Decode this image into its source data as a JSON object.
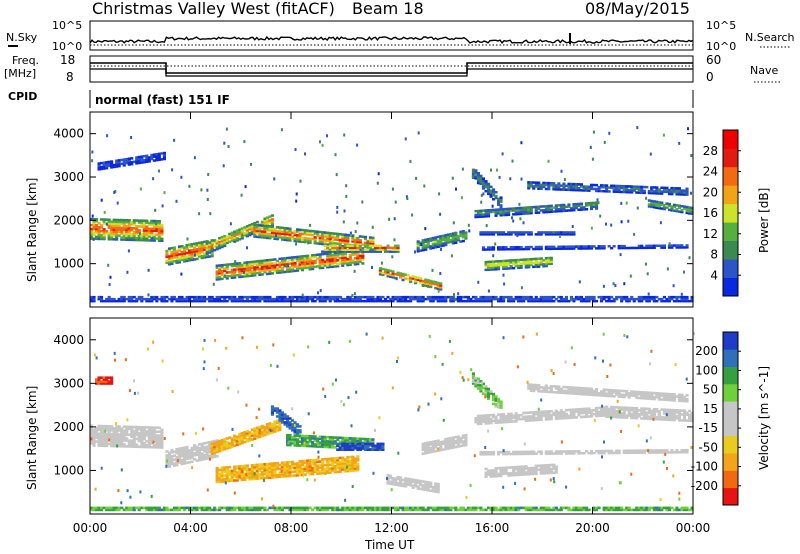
{
  "header": {
    "title": "Christmas Valley West (fitACF)",
    "beam": "Beam 18",
    "date": "08/May/2015"
  },
  "noise_panel": {
    "left_label": "N.Sky",
    "right_label": "N.Search",
    "ticks_left": [
      "10^5",
      "10^0"
    ],
    "ticks_right": [
      "10^5",
      "10^0"
    ]
  },
  "freq_panel": {
    "left_label_line1": "Freq.",
    "left_label_line2": "[MHz]",
    "right_label": "Nave",
    "ticks_left": [
      "18",
      "8"
    ],
    "ticks_right": [
      "60",
      "0"
    ]
  },
  "cpid": {
    "label": "CPID",
    "value": "normal (fast) 151 IF"
  },
  "colors": {
    "power": [
      "#0a28e0",
      "#2e55c8",
      "#3c8a50",
      "#56b040",
      "#cde22a",
      "#f2a418",
      "#f26a12",
      "#e01c10",
      "#ee0000"
    ],
    "velocity": [
      "#e61414",
      "#f06a12",
      "#f4a418",
      "#e9cc1e",
      "#c6c6c6",
      "#c6c6c6",
      "#6fd03c",
      "#36a040",
      "#2f70b8",
      "#1e3cc6"
    ]
  },
  "chart_data": [
    {
      "type": "heatmap",
      "name": "power-panel",
      "ylabel": "Slant Range [km]",
      "yticks": [
        "1000",
        "2000",
        "3000",
        "4000"
      ],
      "ylim": [
        0,
        4500
      ],
      "colorbar_label": "Power [dB]",
      "colorbar_ticks": [
        "4",
        "8",
        "12",
        "16",
        "20",
        "24",
        "28"
      ],
      "colorbar_range": [
        0,
        32
      ],
      "bands": [
        {
          "t0": 0.0,
          "t1": 2.9,
          "r0": 1800,
          "r1": 1750,
          "w": 480,
          "p": 26
        },
        {
          "t0": 3.0,
          "t1": 4.8,
          "r0": 1150,
          "r1": 1350,
          "w": 380,
          "p": 27
        },
        {
          "t0": 4.6,
          "t1": 7.2,
          "r0": 1350,
          "r1": 2000,
          "w": 260,
          "p": 22
        },
        {
          "t0": 6.5,
          "t1": 11.2,
          "r0": 1750,
          "r1": 1450,
          "w": 280,
          "p": 26
        },
        {
          "t0": 5.0,
          "t1": 10.8,
          "r0": 780,
          "r1": 1150,
          "w": 320,
          "p": 28
        },
        {
          "t0": 9.2,
          "t1": 12.2,
          "r0": 1350,
          "r1": 1350,
          "w": 180,
          "p": 24
        },
        {
          "t0": 11.5,
          "t1": 13.9,
          "r0": 820,
          "r1": 470,
          "w": 160,
          "p": 27
        },
        {
          "t0": 13.0,
          "t1": 14.9,
          "r0": 1400,
          "r1": 1650,
          "w": 260,
          "p": 14
        },
        {
          "t0": 15.7,
          "t1": 18.4,
          "r0": 950,
          "r1": 1050,
          "w": 220,
          "p": 19
        },
        {
          "t0": 15.3,
          "t1": 20.2,
          "r0": 2150,
          "r1": 2350,
          "w": 180,
          "p": 10
        },
        {
          "t0": 15.5,
          "t1": 19.3,
          "r0": 1700,
          "r1": 1700,
          "w": 80,
          "p": 6
        },
        {
          "t0": 15.6,
          "t1": 23.8,
          "r0": 1350,
          "r1": 1400,
          "w": 80,
          "p": 5
        },
        {
          "t0": 17.4,
          "t1": 23.8,
          "r0": 2800,
          "r1": 2650,
          "w": 150,
          "p": 9
        },
        {
          "t0": 22.2,
          "t1": 24.0,
          "r0": 2380,
          "r1": 2200,
          "w": 150,
          "p": 15
        },
        {
          "t0": 15.2,
          "t1": 16.4,
          "r0": 3100,
          "r1": 2350,
          "w": 260,
          "p": 9
        },
        {
          "t0": 0.3,
          "t1": 3.0,
          "r0": 3250,
          "r1": 3500,
          "w": 180,
          "p": 5
        },
        {
          "t0": 0.0,
          "t1": 24.0,
          "r0": 180,
          "r1": 180,
          "w": 120,
          "p": 6
        }
      ]
    },
    {
      "type": "heatmap",
      "name": "velocity-panel",
      "xlabel": "Time UT",
      "ylabel": "Slant Range [km]",
      "xticks": [
        "00:00",
        "04:00",
        "08:00",
        "12:00",
        "16:00",
        "20:00",
        "00:00"
      ],
      "yticks": [
        "1000",
        "2000",
        "3000",
        "4000"
      ],
      "ylim": [
        0,
        4500
      ],
      "colorbar_label": "Velocity [m s^-1]",
      "colorbar_ticks": [
        "-200",
        "-100",
        "-50",
        "-15",
        "15",
        "50",
        "100",
        "200"
      ],
      "bands": [
        {
          "t0": 0.0,
          "t1": 2.9,
          "r0": 1800,
          "r1": 1750,
          "w": 480,
          "v": 0
        },
        {
          "t0": 3.0,
          "t1": 5.0,
          "r0": 1250,
          "r1": 1500,
          "w": 380,
          "v": 0
        },
        {
          "t0": 4.8,
          "t1": 7.5,
          "r0": 1500,
          "r1": 2050,
          "w": 260,
          "v": -60
        },
        {
          "t0": 7.2,
          "t1": 8.3,
          "r0": 2400,
          "r1": 1900,
          "w": 260,
          "v": 180
        },
        {
          "t0": 7.8,
          "t1": 11.2,
          "r0": 1700,
          "r1": 1600,
          "w": 260,
          "v": 70
        },
        {
          "t0": 9.8,
          "t1": 11.6,
          "r0": 1550,
          "r1": 1550,
          "w": 180,
          "v": 220
        },
        {
          "t0": 5.0,
          "t1": 10.6,
          "r0": 880,
          "r1": 1150,
          "w": 320,
          "v": -60
        },
        {
          "t0": 11.8,
          "t1": 13.8,
          "r0": 800,
          "r1": 600,
          "w": 220,
          "v": 0
        },
        {
          "t0": 13.2,
          "t1": 14.9,
          "r0": 1500,
          "r1": 1700,
          "w": 260,
          "v": 0
        },
        {
          "t0": 15.7,
          "t1": 18.6,
          "r0": 950,
          "r1": 1050,
          "w": 220,
          "v": 0
        },
        {
          "t0": 15.3,
          "t1": 20.5,
          "r0": 2150,
          "r1": 2350,
          "w": 200,
          "v": 0
        },
        {
          "t0": 17.4,
          "t1": 23.8,
          "r0": 2900,
          "r1": 2650,
          "w": 160,
          "v": 0
        },
        {
          "t0": 20.5,
          "t1": 24.0,
          "r0": 2350,
          "r1": 2250,
          "w": 260,
          "v": 0
        },
        {
          "t0": 15.5,
          "t1": 23.8,
          "r0": 1400,
          "r1": 1450,
          "w": 90,
          "v": 0
        },
        {
          "t0": 15.2,
          "t1": 16.4,
          "r0": 3100,
          "r1": 2400,
          "w": 240,
          "v": 30
        },
        {
          "t0": 0.2,
          "t1": 0.8,
          "r0": 3050,
          "r1": 3050,
          "w": 140,
          "v": -220
        },
        {
          "t0": 0.0,
          "t1": 24.0,
          "r0": 120,
          "r1": 120,
          "w": 80,
          "v": 60
        }
      ]
    }
  ]
}
